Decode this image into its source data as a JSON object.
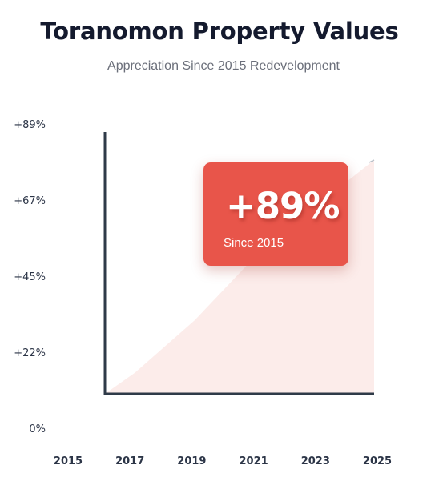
{
  "header": {
    "title": "Toranomon Property Values",
    "subtitle": "Appreciation Since 2015 Redevelopment"
  },
  "callout": {
    "value": "+89%",
    "label": "Since 2015"
  },
  "colors": {
    "accent": "#e8554a",
    "area_fill": "#fbe6e3",
    "axis": "#2f3a48",
    "title": "#141a2e"
  },
  "chart_data": {
    "type": "area",
    "title": "Toranomon Property Values",
    "subtitle": "Appreciation Since 2015 Redevelopment",
    "xlabel": "",
    "ylabel": "",
    "x_tick_labels": [
      "2015",
      "2017",
      "2019",
      "2021",
      "2023",
      "2025"
    ],
    "y_tick_labels": [
      "0%",
      "+22%",
      "+45%",
      "+67%",
      "+89%"
    ],
    "x": [
      2016,
      2017,
      2018,
      2019,
      2020,
      2021,
      2022,
      2023,
      2024,
      2025
    ],
    "series": [
      {
        "values": [
          0,
          8,
          18,
          28,
          40,
          52,
          63,
          72,
          80,
          89
        ]
      }
    ],
    "ylim": [
      0,
      89
    ],
    "grid": false,
    "legend": "none"
  }
}
